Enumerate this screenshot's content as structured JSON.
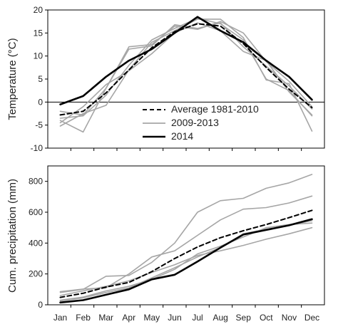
{
  "chart_data": [
    {
      "type": "line",
      "ylabel": "Temperature (°C)",
      "categories": [
        "Jan",
        "Feb",
        "Mar",
        "Apr",
        "May",
        "Jun",
        "Jul",
        "Aug",
        "Sep",
        "Oct",
        "Nov",
        "Dec"
      ],
      "ylim": [
        -10,
        20
      ],
      "yticks": [
        -10,
        -5,
        0,
        5,
        10,
        15,
        20
      ],
      "grid": false,
      "legend_position": "bottom-center",
      "legend": [
        "Average 1981-2010",
        "2009-2013",
        "2014"
      ],
      "series": [
        {
          "name": "Average 1981-2010",
          "style": "dashed",
          "color": "#000000",
          "values": [
            -2.8,
            -2.0,
            2.0,
            7.0,
            11.8,
            15.3,
            17.0,
            16.5,
            12.7,
            7.5,
            2.8,
            -1.2
          ]
        },
        {
          "name": "2009-2013",
          "style": "solid",
          "color": "#a6a6a6",
          "values": [
            -4.0,
            -6.5,
            3.0,
            12.0,
            12.5,
            16.5,
            15.8,
            17.5,
            15.0,
            8.8,
            4.5,
            -1.0
          ]
        },
        {
          "name": "2009-2013",
          "style": "solid",
          "color": "#a6a6a6",
          "values": [
            -5.2,
            -2.5,
            -0.7,
            7.0,
            13.0,
            15.5,
            18.0,
            18.0,
            14.0,
            4.8,
            4.0,
            -6.3
          ]
        },
        {
          "name": "2009-2013",
          "style": "solid",
          "color": "#a6a6a6",
          "values": [
            -4.5,
            -1.0,
            3.8,
            6.8,
            10.5,
            15.0,
            17.2,
            15.5,
            11.0,
            9.0,
            2.2,
            -2.8
          ]
        },
        {
          "name": "2009-2013",
          "style": "solid",
          "color": "#a6a6a6",
          "values": [
            -3.5,
            -3.0,
            1.5,
            8.0,
            13.5,
            16.0,
            18.2,
            17.0,
            13.5,
            5.0,
            2.5,
            -3.0
          ]
        },
        {
          "name": "2009-2013",
          "style": "solid",
          "color": "#a6a6a6",
          "values": [
            -2.0,
            -2.8,
            3.0,
            11.5,
            12.2,
            16.8,
            16.0,
            17.2,
            12.0,
            7.8,
            3.5,
            -1.5
          ]
        },
        {
          "name": "2014",
          "style": "solid-bold",
          "color": "#000000",
          "values": [
            -0.5,
            1.3,
            5.5,
            9.0,
            11.5,
            15.0,
            18.5,
            15.5,
            13.0,
            9.0,
            5.5,
            0.5
          ]
        }
      ]
    },
    {
      "type": "line",
      "ylabel": "Cum. precipitation (mm)",
      "categories": [
        "Jan",
        "Feb",
        "Mar",
        "Apr",
        "May",
        "Jun",
        "Jul",
        "Aug",
        "Sep",
        "Oct",
        "Nov",
        "Dec"
      ],
      "ylim": [
        0,
        900
      ],
      "yticks": [
        0,
        200,
        400,
        600,
        800
      ],
      "grid": false,
      "series": [
        {
          "name": "Average 1981-2010",
          "style": "dashed",
          "color": "#000000",
          "values": [
            48,
            75,
            115,
            145,
            215,
            300,
            375,
            435,
            480,
            520,
            565,
            612
          ]
        },
        {
          "name": "2009-2013",
          "style": "solid",
          "color": "#a6a6a6",
          "values": [
            80,
            100,
            185,
            190,
            275,
            400,
            600,
            675,
            690,
            755,
            790,
            845
          ]
        },
        {
          "name": "2009-2013",
          "style": "solid",
          "color": "#a6a6a6",
          "values": [
            85,
            102,
            110,
            200,
            310,
            350,
            450,
            550,
            620,
            630,
            660,
            705
          ]
        },
        {
          "name": "2009-2013",
          "style": "solid",
          "color": "#a6a6a6",
          "values": [
            60,
            90,
            120,
            155,
            210,
            260,
            320,
            350,
            385,
            425,
            460,
            500
          ]
        },
        {
          "name": "2009-2013",
          "style": "solid",
          "color": "#a6a6a6",
          "values": [
            30,
            50,
            90,
            120,
            165,
            230,
            330,
            380,
            440,
            500,
            520,
            530
          ]
        },
        {
          "name": "2009-2013",
          "style": "solid",
          "color": "#a6a6a6",
          "values": [
            25,
            45,
            80,
            110,
            175,
            240,
            310,
            370,
            460,
            490,
            515,
            545
          ]
        },
        {
          "name": "2014",
          "style": "solid-bold",
          "color": "#000000",
          "values": [
            15,
            30,
            65,
            100,
            165,
            195,
            280,
            370,
            455,
            485,
            515,
            555
          ]
        }
      ]
    }
  ]
}
